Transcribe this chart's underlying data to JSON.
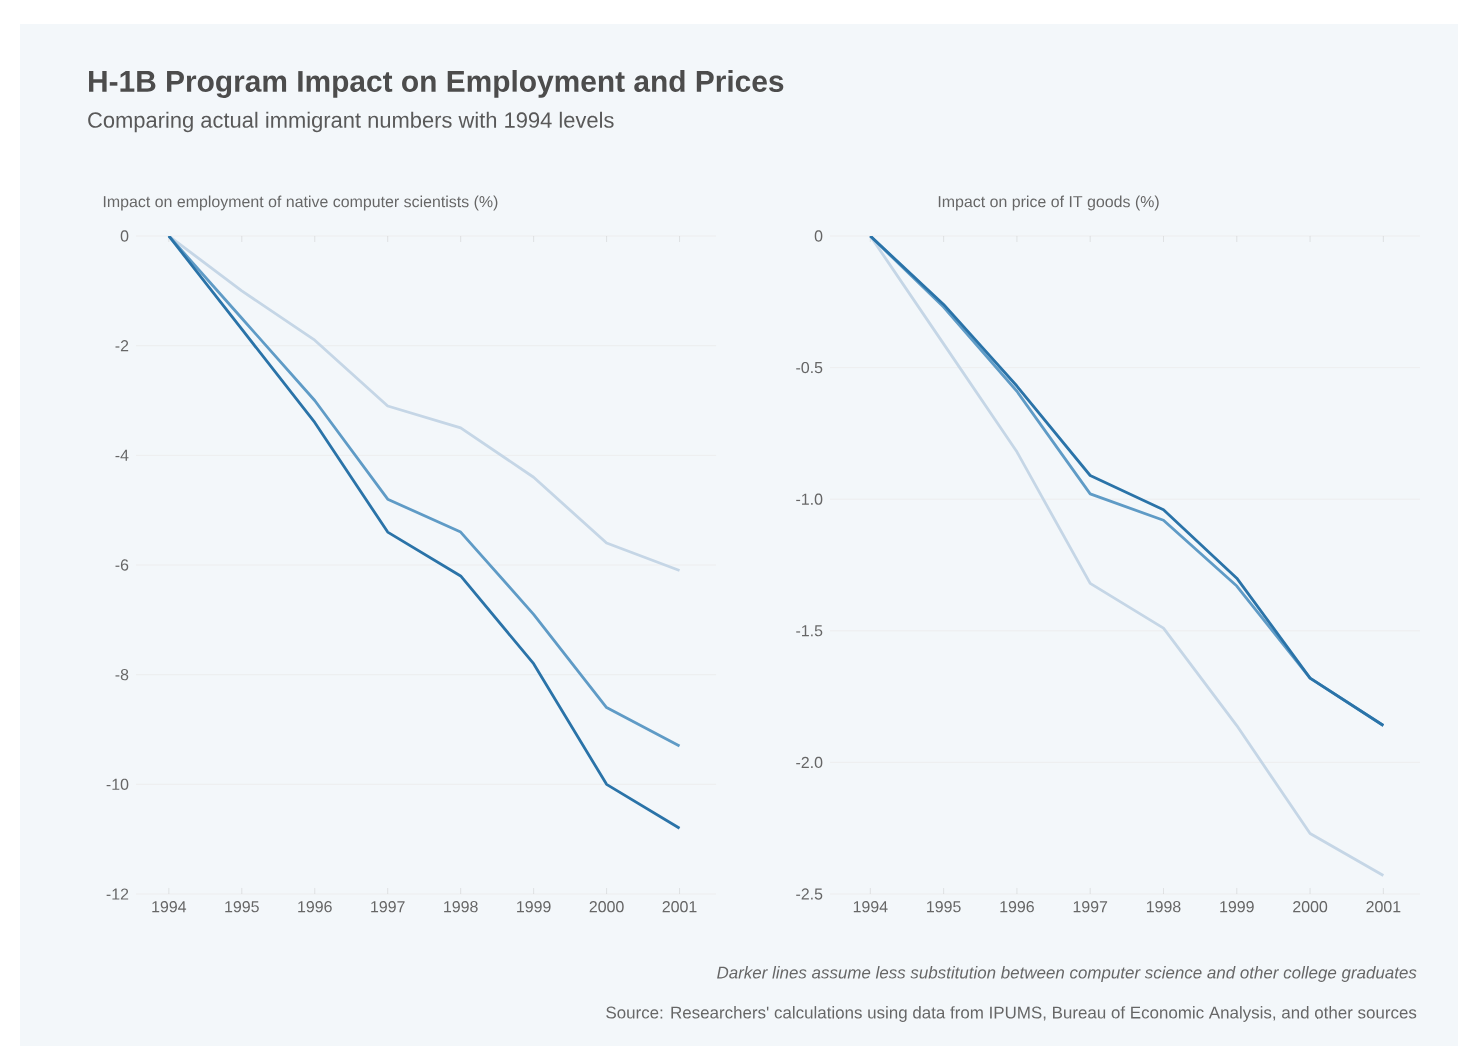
{
  "chart_data": [
    {
      "type": "line",
      "title": "H-1B Program Impact on Employment and Prices",
      "subtitle": "Comparing actual immigrant numbers with 1994 levels",
      "ylabel": "Impact on employment of native computer scientists (%)",
      "categories": [
        "1994",
        "1995",
        "1996",
        "1997",
        "1998",
        "1999",
        "2000",
        "2001"
      ],
      "series": [
        {
          "color": "#c5d6e6",
          "values": [
            0,
            -1.0,
            -1.9,
            -3.1,
            -3.5,
            -4.4,
            -5.6,
            -6.1
          ]
        },
        {
          "color": "#5f9bc6",
          "values": [
            0,
            -1.5,
            -3.0,
            -4.8,
            -5.4,
            -6.9,
            -8.6,
            -9.3
          ]
        },
        {
          "color": "#2a73a8",
          "values": [
            0,
            -1.7,
            -3.4,
            -5.4,
            -6.2,
            -7.8,
            -10.0,
            -10.8
          ]
        }
      ],
      "ylim": [
        -12,
        0
      ],
      "yticks": [
        -12,
        -10,
        -8,
        -6,
        -4,
        -2,
        0
      ],
      "grid": "y"
    },
    {
      "type": "line",
      "ylabel": "Impact on price of IT goods (%)",
      "categories": [
        "1994",
        "1995",
        "1996",
        "1997",
        "1998",
        "1999",
        "2000",
        "2001"
      ],
      "series": [
        {
          "color": "#c5d6e6",
          "values": [
            0,
            -0.41,
            -0.82,
            -1.32,
            -1.49,
            -1.86,
            -2.27,
            -2.43
          ]
        },
        {
          "color": "#5f9bc6",
          "values": [
            0,
            -0.27,
            -0.59,
            -0.98,
            -1.08,
            -1.33,
            -1.68,
            -1.86
          ]
        },
        {
          "color": "#2a73a8",
          "values": [
            0,
            -0.26,
            -0.57,
            -0.91,
            -1.04,
            -1.3,
            -1.68,
            -1.86
          ]
        }
      ],
      "ylim": [
        -2.5,
        0
      ],
      "yticks": [
        -2.5,
        {
          "value": -2,
          "label": "-2.0"
        },
        -1.5,
        {
          "value": -1,
          "label": "-1.0"
        },
        -0.5,
        0
      ],
      "grid": "y",
      "annotations": [
        "Darker lines assume less substitution between computer science and other college graduates",
        "Source: Researchers' calculations using data from IPUMS, Bureau of Economic Analysis, and other sources"
      ]
    }
  ]
}
